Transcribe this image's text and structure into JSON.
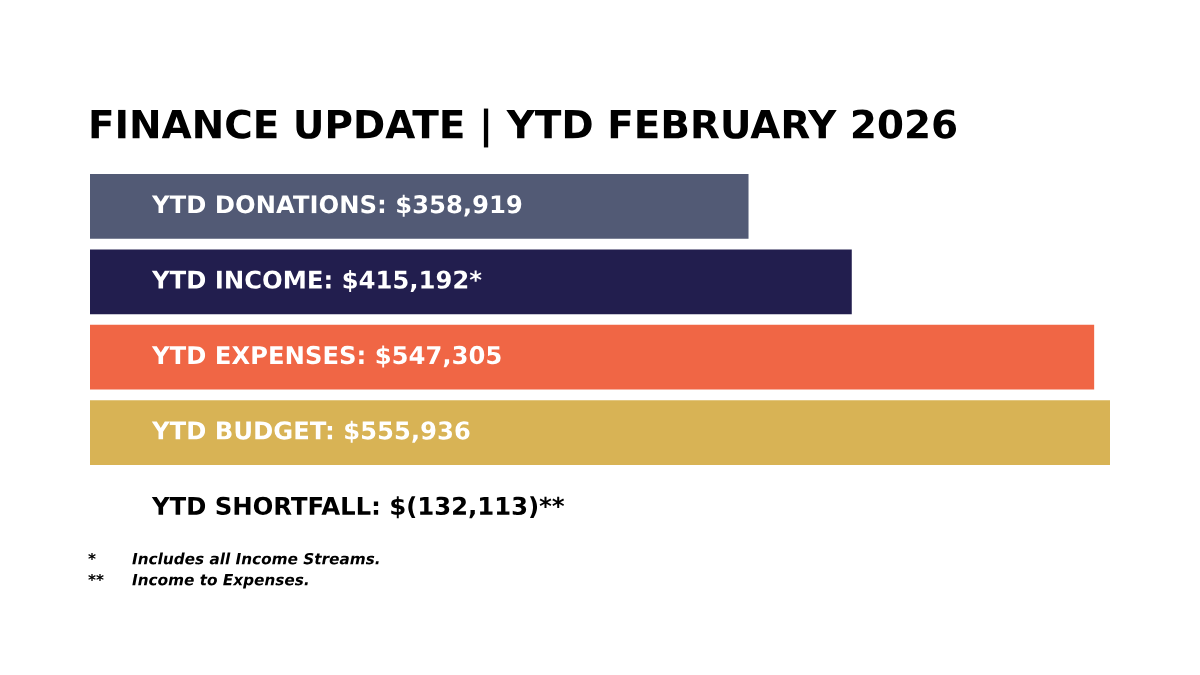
{
  "chart_data": {
    "type": "bar",
    "orientation": "horizontal",
    "title": "FINANCE UPDATE | YTD FEBRUARY 2026",
    "categories": [
      null,
      null,
      null,
      null
    ],
    "values": [
      358919,
      415192,
      547305,
      555936
    ],
    "value_labels": [
      "YTD DONATIONS: $358,919",
      "YTD INCOME: $415,192*",
      "YTD EXPENSES: $547,305",
      "YTD BUDGET: $555,936"
    ],
    "colors": [
      "#525a75",
      "#221e4e",
      "#f06645",
      "#d8b355"
    ],
    "tick_labels": false,
    "grid": false,
    "legend": false,
    "annotations": [
      "YTD SHORTFALL: $(132,113)**",
      "* Includes all Income Streams.",
      "** Income to Expenses."
    ]
  }
}
